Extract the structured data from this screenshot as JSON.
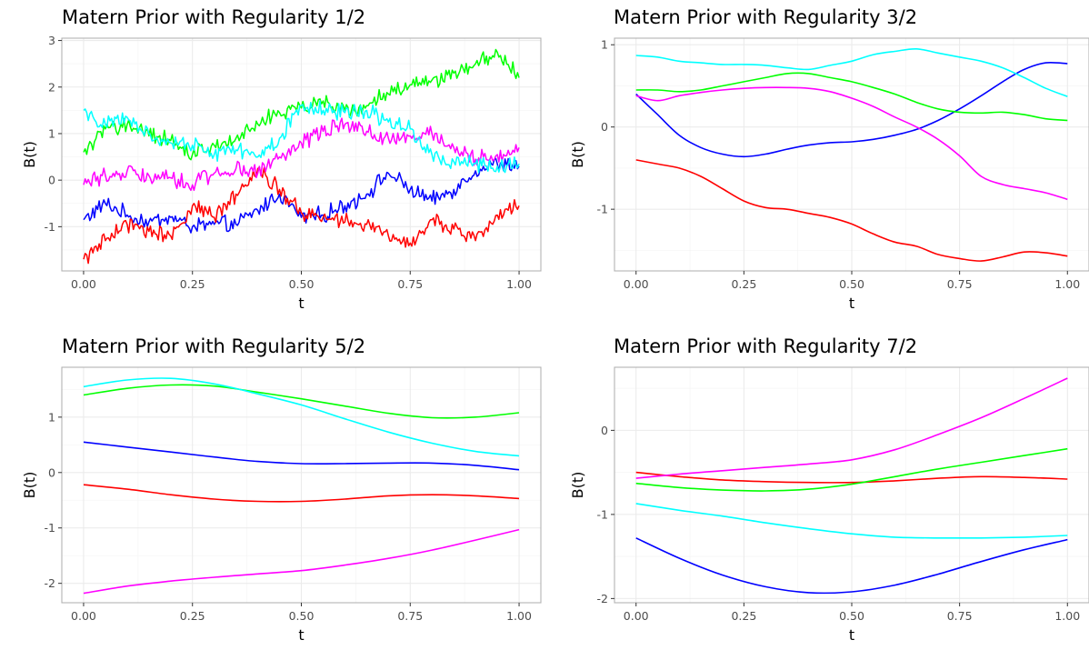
{
  "colors": {
    "series_palette": [
      "#0000FF",
      "#FF0000",
      "#00FF00",
      "#FF00FF",
      "#00FFFF"
    ],
    "grid_major": "#ebebeb",
    "grid_minor": "#f5f5f5",
    "border": "#b3b3b3"
  },
  "chart_data": [
    {
      "type": "line",
      "title": "Matern Prior with Regularity 1/2",
      "xlabel": "t",
      "ylabel": "B(t)",
      "xlim": [
        -0.05,
        1.05
      ],
      "ylim": [
        -1.95,
        3.05
      ],
      "x_ticks": [
        "0.00",
        "0.25",
        "0.50",
        "0.75",
        "1.00"
      ],
      "x_tick_values": [
        0,
        0.25,
        0.5,
        0.75,
        1
      ],
      "y_ticks": [
        "-1",
        "0",
        "1",
        "2",
        "3"
      ],
      "y_tick_values": [
        -1,
        0,
        1,
        2,
        3
      ],
      "grid": true,
      "legend": "none",
      "rough": true,
      "x": [
        0,
        0.05,
        0.1,
        0.15,
        0.2,
        0.25,
        0.3,
        0.35,
        0.4,
        0.45,
        0.5,
        0.55,
        0.6,
        0.65,
        0.7,
        0.75,
        0.8,
        0.85,
        0.9,
        0.95,
        1
      ],
      "series": [
        {
          "color": "#0000FF",
          "values": [
            -0.85,
            -0.5,
            -0.75,
            -0.9,
            -0.8,
            -1.0,
            -0.95,
            -0.95,
            -0.65,
            -0.3,
            -0.8,
            -0.75,
            -0.55,
            -0.3,
            0.15,
            -0.2,
            -0.45,
            -0.2,
            0.2,
            0.35,
            0.3
          ]
        },
        {
          "color": "#FF0000",
          "values": [
            -1.7,
            -1.3,
            -0.95,
            -1.1,
            -1.2,
            -0.55,
            -0.8,
            -0.3,
            0.25,
            -0.2,
            -0.7,
            -0.8,
            -0.9,
            -0.95,
            -1.2,
            -1.35,
            -0.85,
            -1.05,
            -1.3,
            -0.75,
            -0.55
          ]
        },
        {
          "color": "#00FF00",
          "values": [
            0.6,
            1.1,
            1.2,
            0.95,
            0.85,
            0.55,
            0.75,
            0.9,
            1.2,
            1.45,
            1.55,
            1.7,
            1.5,
            1.6,
            1.85,
            2.05,
            2.15,
            2.3,
            2.5,
            2.75,
            2.2
          ]
        },
        {
          "color": "#FF00FF",
          "values": [
            -0.1,
            0.1,
            0.2,
            0.1,
            0.05,
            -0.1,
            0.15,
            0.25,
            0.15,
            0.5,
            0.8,
            1.05,
            1.2,
            1.05,
            0.9,
            0.95,
            1.0,
            0.7,
            0.45,
            0.55,
            0.7
          ]
        },
        {
          "color": "#00FFFF",
          "values": [
            1.5,
            1.2,
            1.35,
            1.0,
            0.8,
            0.75,
            0.55,
            0.65,
            0.5,
            0.9,
            1.6,
            1.5,
            1.45,
            1.5,
            1.25,
            1.1,
            0.55,
            0.4,
            0.35,
            0.3,
            0.35
          ]
        }
      ]
    },
    {
      "type": "line",
      "title": "Matern Prior with Regularity 3/2",
      "xlabel": "t",
      "ylabel": "B(t)",
      "xlim": [
        -0.05,
        1.05
      ],
      "ylim": [
        -1.75,
        1.08
      ],
      "x_ticks": [
        "0.00",
        "0.25",
        "0.50",
        "0.75",
        "1.00"
      ],
      "x_tick_values": [
        0,
        0.25,
        0.5,
        0.75,
        1
      ],
      "y_ticks": [
        "-1",
        "0",
        "1"
      ],
      "y_tick_values": [
        -1,
        0,
        1
      ],
      "grid": true,
      "legend": "none",
      "rough": false,
      "x": [
        0,
        0.05,
        0.1,
        0.15,
        0.2,
        0.25,
        0.3,
        0.35,
        0.4,
        0.45,
        0.5,
        0.55,
        0.6,
        0.65,
        0.7,
        0.75,
        0.8,
        0.85,
        0.9,
        0.95,
        1
      ],
      "series": [
        {
          "color": "#0000FF",
          "values": [
            0.4,
            0.15,
            -0.1,
            -0.25,
            -0.33,
            -0.36,
            -0.33,
            -0.27,
            -0.22,
            -0.19,
            -0.18,
            -0.15,
            -0.1,
            -0.03,
            0.08,
            0.22,
            0.38,
            0.55,
            0.7,
            0.78,
            0.77
          ]
        },
        {
          "color": "#FF0000",
          "values": [
            -0.4,
            -0.45,
            -0.5,
            -0.6,
            -0.75,
            -0.9,
            -0.98,
            -1.0,
            -1.05,
            -1.1,
            -1.18,
            -1.3,
            -1.4,
            -1.45,
            -1.55,
            -1.6,
            -1.63,
            -1.58,
            -1.52,
            -1.53,
            -1.57
          ]
        },
        {
          "color": "#00FF00",
          "values": [
            0.45,
            0.45,
            0.43,
            0.45,
            0.5,
            0.55,
            0.6,
            0.65,
            0.65,
            0.6,
            0.55,
            0.48,
            0.4,
            0.3,
            0.22,
            0.18,
            0.17,
            0.18,
            0.15,
            0.1,
            0.08
          ]
        },
        {
          "color": "#FF00FF",
          "values": [
            0.38,
            0.32,
            0.38,
            0.42,
            0.45,
            0.47,
            0.48,
            0.48,
            0.47,
            0.43,
            0.35,
            0.25,
            0.12,
            0.0,
            -0.15,
            -0.35,
            -0.6,
            -0.7,
            -0.75,
            -0.8,
            -0.88
          ]
        },
        {
          "color": "#00FFFF",
          "values": [
            0.87,
            0.85,
            0.8,
            0.78,
            0.76,
            0.76,
            0.75,
            0.72,
            0.7,
            0.75,
            0.8,
            0.88,
            0.92,
            0.95,
            0.9,
            0.85,
            0.8,
            0.72,
            0.6,
            0.47,
            0.37
          ]
        }
      ]
    },
    {
      "type": "line",
      "title": "Matern Prior with Regularity 5/2",
      "xlabel": "t",
      "ylabel": "B(t)",
      "xlim": [
        -0.05,
        1.05
      ],
      "ylim": [
        -2.35,
        1.9
      ],
      "x_ticks": [
        "0.00",
        "0.25",
        "0.50",
        "0.75",
        "1.00"
      ],
      "x_tick_values": [
        0,
        0.25,
        0.5,
        0.75,
        1
      ],
      "y_ticks": [
        "-2",
        "-1",
        "0",
        "1"
      ],
      "y_tick_values": [
        -2,
        -1,
        0,
        1
      ],
      "grid": true,
      "legend": "none",
      "rough": false,
      "x": [
        0,
        0.1,
        0.2,
        0.3,
        0.4,
        0.5,
        0.6,
        0.7,
        0.8,
        0.9,
        1
      ],
      "series": [
        {
          "color": "#0000FF",
          "values": [
            0.55,
            0.46,
            0.37,
            0.28,
            0.2,
            0.16,
            0.16,
            0.17,
            0.17,
            0.13,
            0.05
          ]
        },
        {
          "color": "#FF0000",
          "values": [
            -0.22,
            -0.3,
            -0.4,
            -0.48,
            -0.52,
            -0.52,
            -0.48,
            -0.42,
            -0.4,
            -0.42,
            -0.47
          ]
        },
        {
          "color": "#00FF00",
          "values": [
            1.4,
            1.52,
            1.58,
            1.56,
            1.45,
            1.33,
            1.2,
            1.07,
            0.99,
            1.0,
            1.08
          ]
        },
        {
          "color": "#FF00FF",
          "values": [
            -2.18,
            -2.05,
            -1.96,
            -1.89,
            -1.83,
            -1.77,
            -1.67,
            -1.55,
            -1.4,
            -1.22,
            -1.03
          ]
        },
        {
          "color": "#00FFFF",
          "values": [
            1.55,
            1.67,
            1.7,
            1.6,
            1.42,
            1.22,
            0.97,
            0.73,
            0.53,
            0.38,
            0.3
          ]
        }
      ]
    },
    {
      "type": "line",
      "title": "Matern Prior with Regularity 7/2",
      "xlabel": "t",
      "ylabel": "B(t)",
      "xlim": [
        -0.05,
        1.05
      ],
      "ylim": [
        -2.05,
        0.75
      ],
      "x_ticks": [
        "0.00",
        "0.25",
        "0.50",
        "0.75",
        "1.00"
      ],
      "x_tick_values": [
        0,
        0.25,
        0.5,
        0.75,
        1
      ],
      "y_ticks": [
        "-2",
        "-1",
        "0"
      ],
      "y_tick_values": [
        -2,
        -1,
        0
      ],
      "grid": true,
      "legend": "none",
      "rough": false,
      "x": [
        0,
        0.1,
        0.2,
        0.3,
        0.4,
        0.5,
        0.6,
        0.7,
        0.8,
        0.9,
        1
      ],
      "series": [
        {
          "color": "#0000FF",
          "values": [
            -1.28,
            -1.52,
            -1.72,
            -1.86,
            -1.93,
            -1.92,
            -1.84,
            -1.71,
            -1.56,
            -1.42,
            -1.3
          ]
        },
        {
          "color": "#FF0000",
          "values": [
            -0.5,
            -0.55,
            -0.59,
            -0.61,
            -0.62,
            -0.62,
            -0.6,
            -0.57,
            -0.55,
            -0.56,
            -0.58
          ]
        },
        {
          "color": "#00FF00",
          "values": [
            -0.63,
            -0.68,
            -0.71,
            -0.72,
            -0.7,
            -0.64,
            -0.55,
            -0.46,
            -0.38,
            -0.3,
            -0.22
          ]
        },
        {
          "color": "#FF00FF",
          "values": [
            -0.57,
            -0.52,
            -0.48,
            -0.44,
            -0.4,
            -0.35,
            -0.23,
            -0.05,
            0.15,
            0.38,
            0.62
          ]
        },
        {
          "color": "#00FFFF",
          "values": [
            -0.87,
            -0.95,
            -1.02,
            -1.1,
            -1.17,
            -1.23,
            -1.27,
            -1.28,
            -1.28,
            -1.27,
            -1.25
          ]
        }
      ]
    }
  ]
}
